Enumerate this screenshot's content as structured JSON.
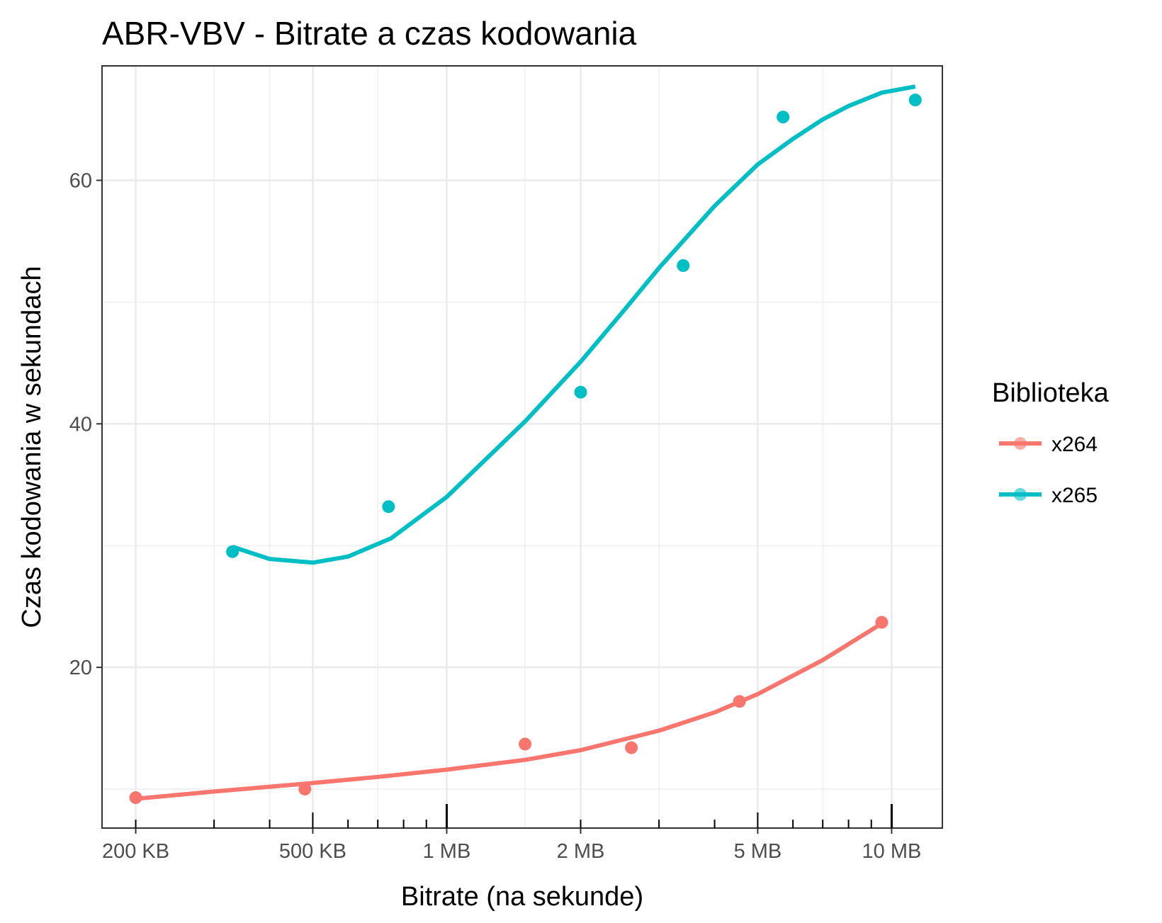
{
  "chart_data": {
    "type": "scatter",
    "title": "ABR-VBV - Bitrate a czas kodowania",
    "xlabel": "Bitrate (na sekunde)",
    "ylabel": "Czas kodowania w sekundach",
    "x_scale": "log10",
    "x_unit": "KB",
    "xlim": [
      168,
      13000
    ],
    "ylim": [
      6.8,
      69.4
    ],
    "x_ticks": [
      {
        "value": 200,
        "label": "200 KB"
      },
      {
        "value": 500,
        "label": "500 KB"
      },
      {
        "value": 1000,
        "label": "1 MB"
      },
      {
        "value": 2000,
        "label": "2 MB"
      },
      {
        "value": 5000,
        "label": "5 MB"
      },
      {
        "value": 10000,
        "label": "10 MB"
      }
    ],
    "y_ticks": [
      {
        "value": 20,
        "label": "20"
      },
      {
        "value": 40,
        "label": "40"
      },
      {
        "value": 60,
        "label": "60"
      }
    ],
    "grid": true,
    "smooth": true,
    "legend": {
      "title": "Biblioteka",
      "position": "right"
    },
    "series": [
      {
        "name": "x264",
        "color": "#F8766D",
        "points": [
          {
            "x": 200,
            "y": 9.3
          },
          {
            "x": 480,
            "y": 10.0
          },
          {
            "x": 1500,
            "y": 13.7
          },
          {
            "x": 2600,
            "y": 13.4
          },
          {
            "x": 4550,
            "y": 17.2
          },
          {
            "x": 9500,
            "y": 23.7
          }
        ],
        "trend": [
          {
            "x": 200,
            "y": 9.2
          },
          {
            "x": 300,
            "y": 9.8
          },
          {
            "x": 500,
            "y": 10.5
          },
          {
            "x": 700,
            "y": 11.0
          },
          {
            "x": 1000,
            "y": 11.6
          },
          {
            "x": 1500,
            "y": 12.4
          },
          {
            "x": 2000,
            "y": 13.2
          },
          {
            "x": 3000,
            "y": 14.8
          },
          {
            "x": 4000,
            "y": 16.3
          },
          {
            "x": 5000,
            "y": 17.8
          },
          {
            "x": 7000,
            "y": 20.6
          },
          {
            "x": 9500,
            "y": 23.6
          }
        ]
      },
      {
        "name": "x265",
        "color": "#00BFC4",
        "points": [
          {
            "x": 330,
            "y": 29.5
          },
          {
            "x": 740,
            "y": 33.2
          },
          {
            "x": 2000,
            "y": 42.6
          },
          {
            "x": 3400,
            "y": 53.0
          },
          {
            "x": 5700,
            "y": 65.2
          },
          {
            "x": 11300,
            "y": 66.6
          }
        ],
        "trend": [
          {
            "x": 330,
            "y": 29.9
          },
          {
            "x": 400,
            "y": 28.9
          },
          {
            "x": 500,
            "y": 28.6
          },
          {
            "x": 600,
            "y": 29.1
          },
          {
            "x": 750,
            "y": 30.6
          },
          {
            "x": 1000,
            "y": 34.0
          },
          {
            "x": 1500,
            "y": 40.2
          },
          {
            "x": 2000,
            "y": 45.1
          },
          {
            "x": 2500,
            "y": 49.3
          },
          {
            "x": 3000,
            "y": 52.8
          },
          {
            "x": 4000,
            "y": 57.9
          },
          {
            "x": 5000,
            "y": 61.3
          },
          {
            "x": 6000,
            "y": 63.4
          },
          {
            "x": 7000,
            "y": 65.0
          },
          {
            "x": 8000,
            "y": 66.1
          },
          {
            "x": 9500,
            "y": 67.2
          },
          {
            "x": 11300,
            "y": 67.7
          }
        ]
      }
    ]
  }
}
